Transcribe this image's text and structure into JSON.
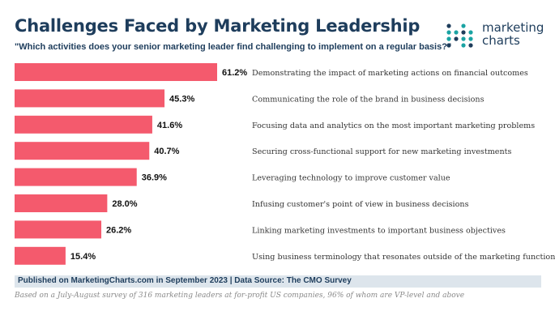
{
  "header": {
    "title": "Challenges Faced by Marketing Leadership",
    "subtitle": "\"Which activities does your senior marketing leader find challenging to implement on a regular basis?\""
  },
  "logo": {
    "line1": "marketing",
    "line2": "charts",
    "dot_color": "#1aa3a3"
  },
  "colors": {
    "bar": "#f45a6d",
    "title": "#1e3d5c",
    "label": "#333333",
    "value": "#111111"
  },
  "chart_data": {
    "type": "bar",
    "orientation": "horizontal",
    "title": "Challenges Faced by Marketing Leadership",
    "xlabel": "",
    "ylabel": "",
    "xlim": [
      0,
      61.2
    ],
    "grid": false,
    "categories": [
      "Demonstrating the impact of marketing actions on financial outcomes",
      "Communicating the role of the brand in business decisions",
      "Focusing data and analytics on the most important marketing problems",
      "Securing cross-functional support for new marketing investments",
      "Leveraging technology to improve customer value",
      "Infusing customer's point of view in business decisions",
      "Linking marketing investments to important business objectives",
      "Using business terminology that resonates outside of the marketing function"
    ],
    "values": [
      61.2,
      45.3,
      41.6,
      40.7,
      36.9,
      28.0,
      26.2,
      15.4
    ],
    "value_labels": [
      "61.2%",
      "45.3%",
      "41.6%",
      "40.7%",
      "36.9%",
      "28.0%",
      "26.2%",
      "15.4%"
    ]
  },
  "footer": {
    "source": "Published on MarketingCharts.com in September 2023 | Data Source: The CMO Survey",
    "note": "Based on a July-August survey of 316 marketing leaders at for-profit US companies, 96% of whom are VP-level and above"
  }
}
